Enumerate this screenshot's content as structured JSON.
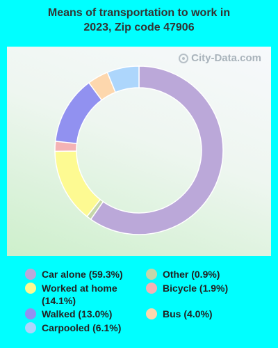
{
  "title_line1": "Means of transportation to work in",
  "title_line2": "2023, Zip code 47906",
  "watermark": "City-Data.com",
  "chart_data": {
    "type": "pie",
    "style": "donut",
    "title": "Means of transportation to work in 2023, Zip code 47906",
    "slices": [
      {
        "label": "Car alone",
        "value": 59.3,
        "color": "#bba8d9",
        "legend": "Car alone (59.3%)"
      },
      {
        "label": "Other",
        "value": 0.9,
        "color": "#c5d6a9",
        "legend": "Other (0.9%)"
      },
      {
        "label": "Worked at home",
        "value": 14.1,
        "color": "#fdfa92",
        "legend": "Worked at home (14.1%)"
      },
      {
        "label": "Bicycle",
        "value": 1.9,
        "color": "#f4b3b5",
        "legend": "Bicycle (1.9%)"
      },
      {
        "label": "Walked",
        "value": 13.0,
        "color": "#9191f0",
        "legend": "Walked (13.0%)"
      },
      {
        "label": "Bus",
        "value": 4.0,
        "color": "#fdd7ad",
        "legend": "Bus (4.0%)"
      },
      {
        "label": "Carpooled",
        "value": 6.1,
        "color": "#add6fc",
        "legend": "Carpooled (6.1%)"
      }
    ],
    "legend_placement": "bottom"
  }
}
